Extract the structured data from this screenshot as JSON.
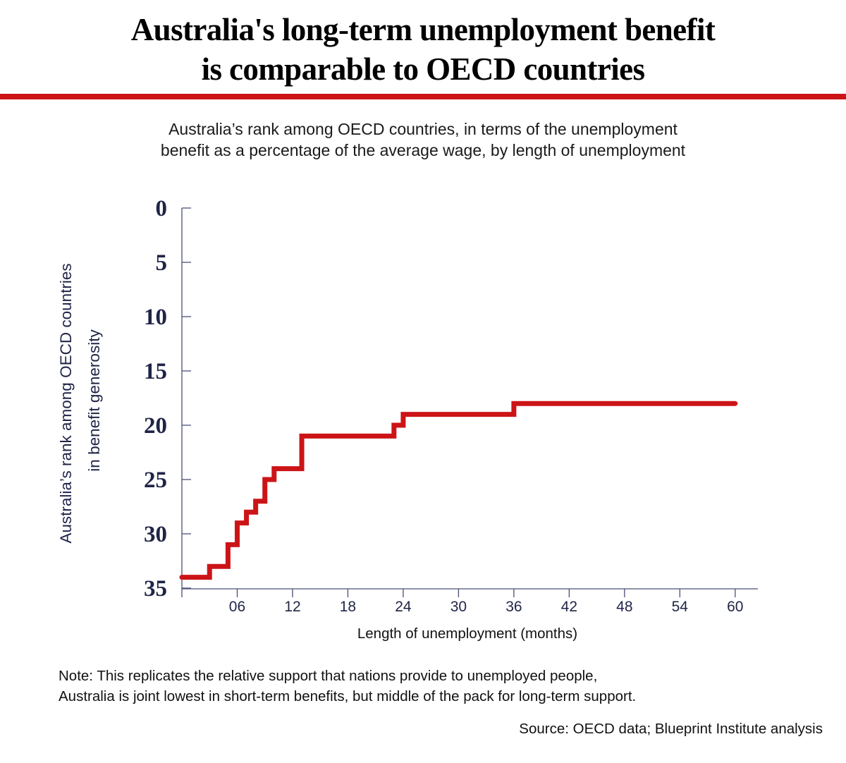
{
  "title_line1": "Australia's long-term unemployment benefit",
  "title_line2": "is comparable to OECD countries",
  "subtitle_line1": "Australia’s rank among OECD countries, in terms of the unemployment",
  "subtitle_line2": "benefit as a percentage of the average wage, by length of unemployment",
  "note_line1": "Note: This replicates the relative support that nations provide to unemployed people,",
  "note_line2": "Australia is joint lowest in short-term benefits, but middle of the pack for long-term support.",
  "source": "Source: OECD data; Blueprint Institute analysis",
  "colors": {
    "accent": "#cc1417",
    "axis": "#4a5075",
    "tick_text": "#1f2447"
  },
  "chart_data": {
    "type": "line",
    "step": true,
    "xlabel": "Length of unemployment (months)",
    "ylabel_line1": "Australia’s rank among OECD countries",
    "ylabel_line2": "in benefit generosity",
    "xlim": [
      0,
      61
    ],
    "ylim": [
      0,
      35
    ],
    "y_inverted": true,
    "x_ticks": [
      6,
      12,
      18,
      24,
      30,
      36,
      42,
      48,
      54,
      60
    ],
    "x_tick_labels": [
      "06",
      "12",
      "18",
      "24",
      "30",
      "36",
      "42",
      "48",
      "54",
      "60"
    ],
    "y_ticks": [
      0,
      5,
      10,
      15,
      20,
      25,
      30,
      35
    ],
    "y_tick_labels": [
      "0",
      "5",
      "10",
      "15",
      "20",
      "25",
      "30",
      "35"
    ],
    "series": [
      {
        "name": "Australia rank",
        "x": [
          0,
          3,
          5,
          6,
          7,
          8,
          9,
          10,
          13,
          23,
          24,
          36,
          60
        ],
        "y": [
          34,
          33,
          31,
          29,
          28,
          27,
          25,
          24,
          21,
          20,
          19,
          18,
          18
        ]
      }
    ]
  }
}
